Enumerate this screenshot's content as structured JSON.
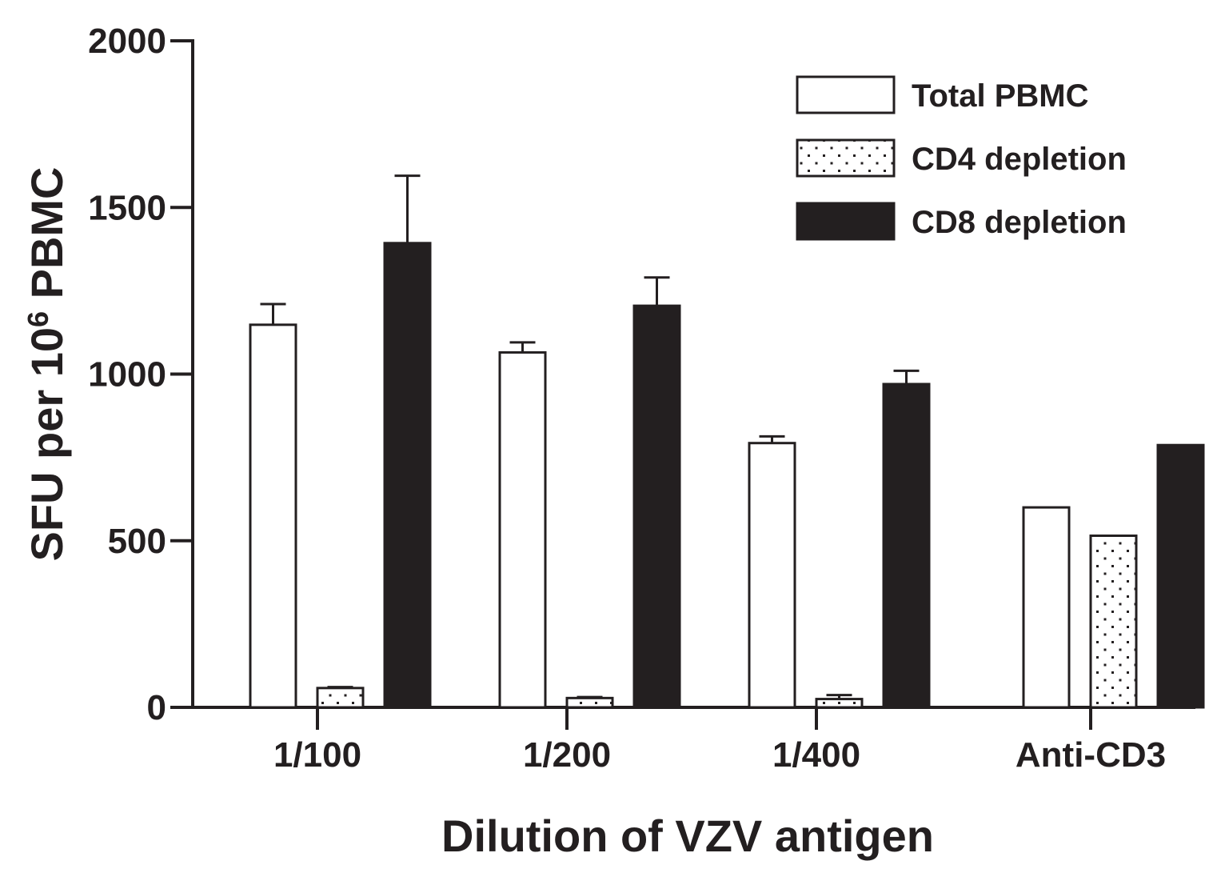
{
  "chart_data": {
    "type": "bar",
    "title": "",
    "xlabel": "Dilution of VZV antigen",
    "ylabel": {
      "prefix": "SFU per 10",
      "superscript": "6",
      "suffix": " PBMC"
    },
    "ylim": [
      0,
      2000
    ],
    "yticks": [
      0,
      500,
      1000,
      1500,
      2000
    ],
    "categories": [
      "1/100",
      "1/200",
      "1/400",
      "Anti-CD3"
    ],
    "series": [
      {
        "name": "Total PBMC",
        "fill": "#ffffff",
        "pattern": "none",
        "values": [
          1148,
          1065,
          793,
          600
        ],
        "errors": [
          62,
          30,
          20,
          null
        ]
      },
      {
        "name": "CD4 depletion",
        "fill": "#ffffff",
        "pattern": "dots",
        "values": [
          58,
          28,
          25,
          515
        ],
        "errors": [
          3,
          3,
          12,
          null
        ]
      },
      {
        "name": "CD8 depletion",
        "fill": "#231f20",
        "pattern": "none",
        "values": [
          1393,
          1205,
          970,
          787
        ],
        "errors": [
          202,
          85,
          40,
          null
        ]
      }
    ],
    "legend_position": "top-right",
    "grid": false,
    "colors": {
      "ink": "#231f20",
      "background": "#ffffff"
    }
  }
}
